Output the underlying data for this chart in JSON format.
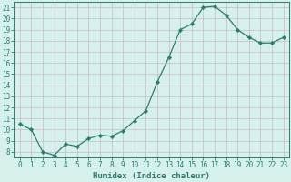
{
  "x": [
    0,
    1,
    2,
    3,
    4,
    5,
    6,
    7,
    8,
    9,
    10,
    11,
    12,
    13,
    14,
    15,
    16,
    17,
    18,
    19,
    20,
    21,
    22,
    23
  ],
  "y": [
    10.5,
    10.0,
    8.0,
    7.7,
    8.7,
    8.5,
    9.2,
    9.5,
    9.4,
    9.9,
    10.8,
    11.7,
    14.3,
    16.5,
    19.0,
    19.5,
    21.0,
    21.1,
    20.3,
    19.0,
    18.3,
    17.8,
    17.8,
    18.3
  ],
  "line_color": "#2d7d6e",
  "marker": "D",
  "marker_size": 2.2,
  "bg_color": "#d6f0eb",
  "grid_color": "#c8b8c8",
  "xlim": [
    -0.5,
    23.5
  ],
  "ylim": [
    7.5,
    21.5
  ],
  "yticks": [
    8,
    9,
    10,
    11,
    12,
    13,
    14,
    15,
    16,
    17,
    18,
    19,
    20,
    21
  ],
  "xticks": [
    0,
    1,
    2,
    3,
    4,
    5,
    6,
    7,
    8,
    9,
    10,
    11,
    12,
    13,
    14,
    15,
    16,
    17,
    18,
    19,
    20,
    21,
    22,
    23
  ],
  "xlabel": "Humidex (Indice chaleur)",
  "xlabel_fontsize": 6.5,
  "tick_fontsize": 5.5,
  "tick_color": "#2d7d6e",
  "spine_color": "#2d7d6e",
  "linewidth": 0.9
}
